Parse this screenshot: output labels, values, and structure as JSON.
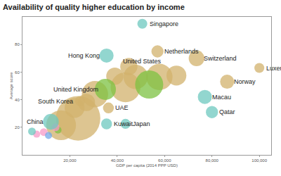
{
  "chart_data": {
    "type": "scatter",
    "marker": "bubble",
    "title": "Availability of quality higher education by income",
    "x_label": "GDP per capita (2014 PPP USD)",
    "y_label": "Average score",
    "xlim": [
      0,
      105000
    ],
    "xticks": [
      {
        "value": 20000,
        "label": "20,000"
      },
      {
        "value": 40000,
        "label": "40,000"
      },
      {
        "value": 60000,
        "label": "60,000"
      },
      {
        "value": 80000,
        "label": "80,000"
      },
      {
        "value": 100000,
        "label": "100,000"
      }
    ],
    "ylim": [
      0,
      100
    ],
    "yticks": [
      20,
      40,
      60,
      80
    ],
    "grid": false,
    "x": [
      23500,
      16300,
      30600,
      43500,
      47800,
      57800,
      65000,
      44900,
      22000,
      27000,
      39000,
      9000,
      6000,
      11000,
      15000,
      4000,
      14000,
      50600,
      35500,
      57000,
      53500,
      73500,
      100000,
      86400,
      77000,
      80000,
      43500,
      35500,
      36300,
      35000,
      24300,
      12000
    ],
    "values": [
      26.5,
      21.5,
      44,
      49,
      56.5,
      56.5,
      57.5,
      64,
      34,
      38,
      57,
      16.5,
      15,
      14,
      18,
      17,
      20,
      95,
      72,
      75,
      51,
      70,
      63,
      53,
      42,
      31,
      22.5,
      22.5,
      34,
      47.5,
      39,
      24
    ],
    "sizes": [
      200,
      90,
      70,
      90,
      60,
      70,
      40,
      30,
      40,
      30,
      30,
      6,
      5,
      5,
      5,
      6,
      6,
      10,
      20,
      15,
      80,
      25,
      10,
      20,
      20,
      15,
      10,
      12,
      12,
      45,
      10,
      25
    ],
    "colors": [
      "#d2b26c",
      "#d2b26c",
      "#d2b26c",
      "#d2b26c",
      "#d2b26c",
      "#d2b26c",
      "#d2b26c",
      "#d2b26c",
      "#d2b26c",
      "#d2b26c",
      "#d2b26c",
      "#f59ac7",
      "#f59ac7",
      "#73a9e8",
      "#7cc242",
      "#6dc8bf",
      "#f59ac7",
      "#6dc8bf",
      "#6dc8bf",
      "#d2b26c",
      "#7cc242",
      "#d2b26c",
      "#d2b26c",
      "#d2b26c",
      "#6dc8bf",
      "#6dc8bf",
      "#6dc8bf",
      "#6dc8bf",
      "#d2b26c",
      "#7cc242",
      "#d2b26c",
      "#6dc8bf"
    ],
    "labels": [
      null,
      null,
      null,
      null,
      null,
      null,
      null,
      null,
      null,
      null,
      null,
      null,
      null,
      null,
      null,
      null,
      null,
      "Singapore",
      "Hong Kong",
      "Netherlands",
      "United States",
      "Switzerland",
      "Luxembourg",
      "Norway",
      "Macau",
      "Qatar",
      "Japan",
      "Kuwait",
      "UAE",
      "United Kingdom",
      "South Korea",
      "China"
    ]
  }
}
